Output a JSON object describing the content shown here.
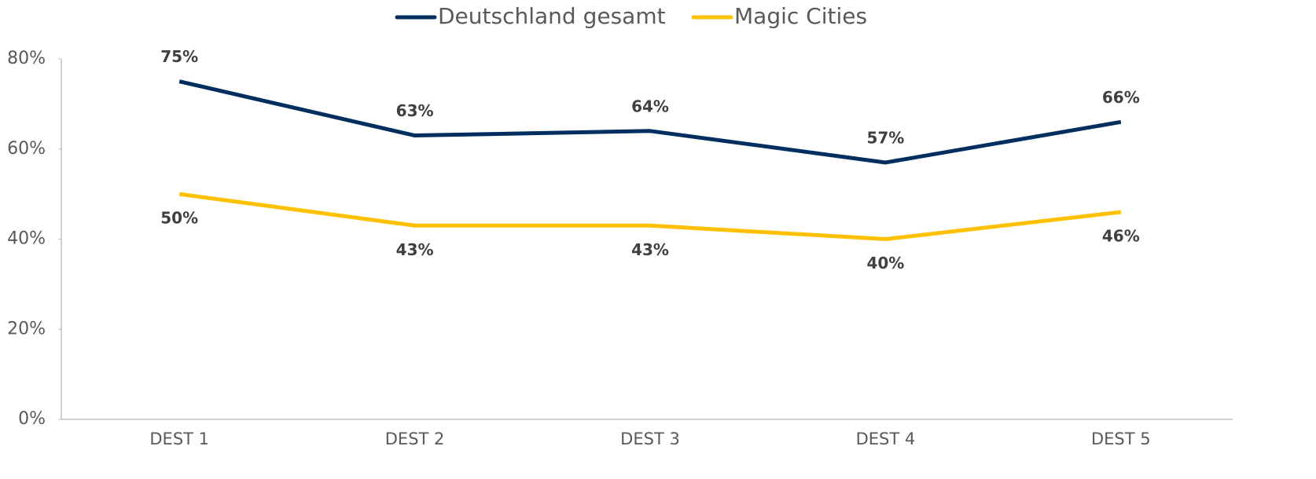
{
  "chart_data": {
    "type": "line",
    "categories": [
      "DEST 1",
      "DEST 2",
      "DEST 3",
      "DEST 4",
      "DEST 5"
    ],
    "series": [
      {
        "name": "Deutschland gesamt",
        "color": "#002f5f",
        "values": [
          75,
          63,
          64,
          57,
          66
        ],
        "value_labels": [
          "75%",
          "63%",
          "64%",
          "57%",
          "66%"
        ]
      },
      {
        "name": "Magic Cities",
        "color": "#ffc000",
        "values": [
          50,
          43,
          43,
          40,
          46
        ],
        "value_labels": [
          "50%",
          "43%",
          "43%",
          "40%",
          "46%"
        ]
      }
    ],
    "ylim": [
      0,
      80
    ],
    "yticks": [
      {
        "value": 0,
        "label": "0%"
      },
      {
        "value": 20,
        "label": "20%"
      },
      {
        "value": 40,
        "label": "40%"
      },
      {
        "value": 60,
        "label": "60%"
      },
      {
        "value": 80,
        "label": "80%"
      }
    ],
    "grid": false,
    "legend": "top"
  }
}
